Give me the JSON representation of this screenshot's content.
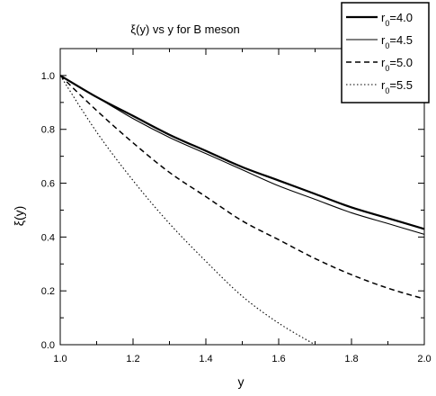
{
  "chart_data": {
    "type": "line",
    "title": "ξ(y) vs y for B meson",
    "xlabel": "y",
    "ylabel": "ξ(y)",
    "xlim": [
      1.0,
      2.0
    ],
    "ylim": [
      0.0,
      1.1
    ],
    "xticks": [
      "1.0",
      "1.2",
      "1.4",
      "1.6",
      "1.8",
      "2.0"
    ],
    "yticks": [
      "0.0",
      "0.2",
      "0.4",
      "0.6",
      "0.8",
      "1.0"
    ],
    "grid": false,
    "legend_position": "top-right",
    "series": [
      {
        "name_main": "r",
        "name_sub": "0",
        "name_value": "=4.0",
        "style": "solid-thick",
        "x": [
          1.0,
          1.1,
          1.2,
          1.3,
          1.4,
          1.5,
          1.6,
          1.7,
          1.8,
          1.9,
          2.0
        ],
        "y": [
          1.0,
          0.92,
          0.85,
          0.78,
          0.72,
          0.66,
          0.61,
          0.56,
          0.51,
          0.47,
          0.43
        ]
      },
      {
        "name_main": "r",
        "name_sub": "0",
        "name_value": "=4.5",
        "style": "solid-thin",
        "x": [
          1.0,
          1.1,
          1.2,
          1.3,
          1.4,
          1.5,
          1.6,
          1.7,
          1.8,
          1.9,
          2.0
        ],
        "y": [
          1.0,
          0.92,
          0.84,
          0.77,
          0.71,
          0.65,
          0.59,
          0.54,
          0.49,
          0.45,
          0.41
        ]
      },
      {
        "name_main": "r",
        "name_sub": "0",
        "name_value": "=5.0",
        "style": "dashed",
        "x": [
          1.0,
          1.1,
          1.2,
          1.3,
          1.4,
          1.5,
          1.6,
          1.7,
          1.8,
          1.9,
          2.0
        ],
        "y": [
          1.0,
          0.87,
          0.75,
          0.64,
          0.55,
          0.46,
          0.39,
          0.32,
          0.26,
          0.21,
          0.17
        ]
      },
      {
        "name_main": "r",
        "name_sub": "0",
        "name_value": "=5.5",
        "style": "dotted",
        "x": [
          1.0,
          1.1,
          1.2,
          1.3,
          1.4,
          1.5,
          1.6,
          1.7
        ],
        "y": [
          1.0,
          0.79,
          0.61,
          0.45,
          0.31,
          0.18,
          0.08,
          0.0
        ]
      }
    ]
  }
}
